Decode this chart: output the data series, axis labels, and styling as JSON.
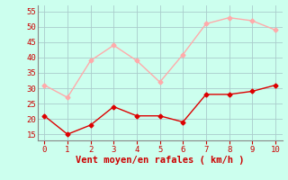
{
  "x": [
    0,
    1,
    2,
    3,
    4,
    5,
    6,
    7,
    8,
    9,
    10
  ],
  "y_rafales": [
    31,
    27,
    39,
    44,
    39,
    32,
    41,
    51,
    53,
    52,
    49
  ],
  "y_moyen": [
    21,
    15,
    18,
    24,
    21,
    21,
    19,
    28,
    28,
    29,
    31
  ],
  "color_rafales": "#ffaaaa",
  "color_moyen": "#dd0000",
  "bg_color": "#ccffee",
  "grid_color": "#aacccc",
  "xlabel": "Vent moyen/en rafales ( km/h )",
  "xlabel_color": "#cc0000",
  "ylim": [
    13,
    57
  ],
  "xlim": [
    -0.3,
    10.3
  ],
  "yticks": [
    15,
    20,
    25,
    30,
    35,
    40,
    45,
    50,
    55
  ],
  "xticks": [
    0,
    1,
    2,
    3,
    4,
    5,
    6,
    7,
    8,
    9,
    10
  ],
  "marker": "D",
  "markersize": 2.5,
  "linewidth": 1.0,
  "tick_color": "#cc0000",
  "axes_color": "#888888",
  "tick_fontsize": 6.5,
  "xlabel_fontsize": 7.5
}
